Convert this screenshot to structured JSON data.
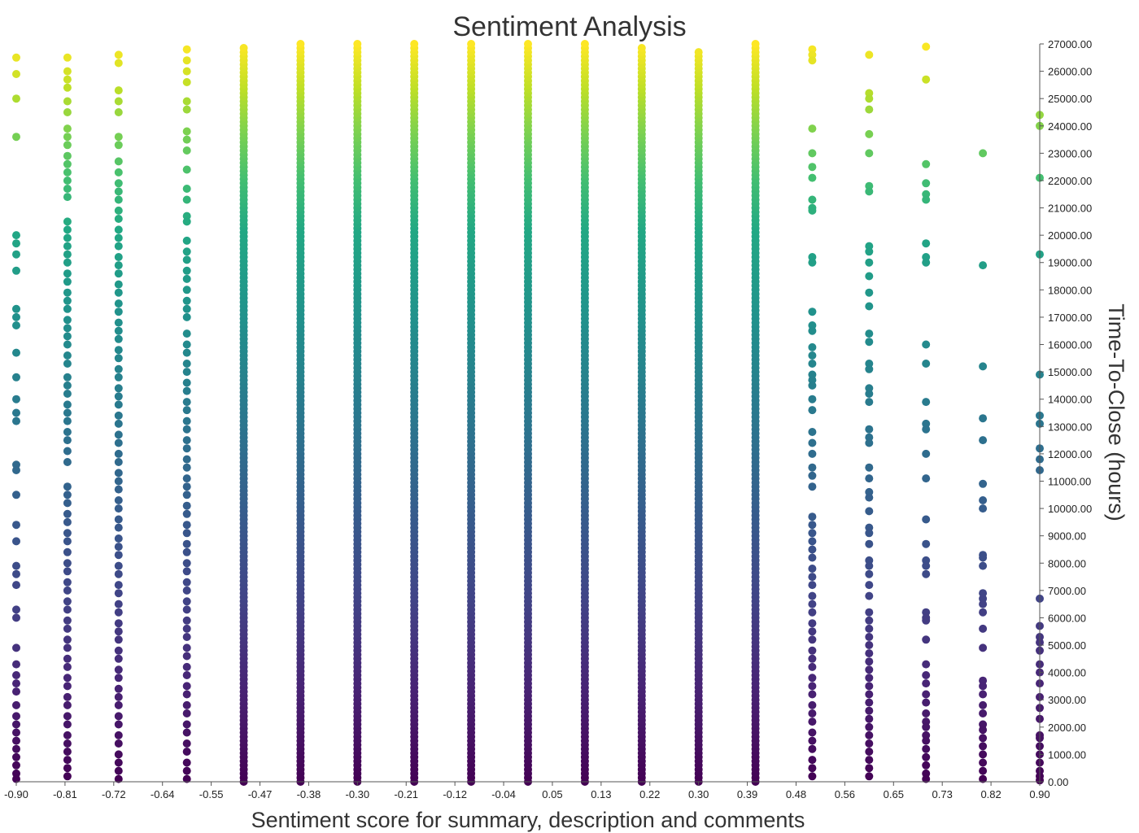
{
  "chart_data": {
    "type": "scatter",
    "title": "Sentiment Analysis",
    "xlabel": "Sentiment score for summary, description and comments",
    "ylabel": "Time-To-Close (hours)",
    "xlim": [
      -0.9,
      0.9
    ],
    "ylim": [
      0,
      27000
    ],
    "x_ticks": [
      "-0.90",
      "-0.81",
      "-0.72",
      "-0.64",
      "-0.55",
      "-0.47",
      "-0.38",
      "-0.30",
      "-0.21",
      "-0.12",
      "-0.04",
      "0.05",
      "0.13",
      "0.22",
      "0.30",
      "0.39",
      "0.48",
      "0.56",
      "0.65",
      "0.73",
      "0.82",
      "0.90"
    ],
    "y_ticks": [
      "27000.00",
      "26000.00",
      "25000.00",
      "24000.00",
      "23000.00",
      "22000.00",
      "21000.00",
      "20000.00",
      "19000.00",
      "18000.00",
      "17000.00",
      "16000.00",
      "15000.00",
      "14000.00",
      "13000.00",
      "12000.00",
      "11000.00",
      "10000.00",
      "9000.00",
      "8000.00",
      "7000.00",
      "6000.00",
      "5000.00",
      "4000.00",
      "3000.00",
      "2000.00",
      "1000.00",
      "0.00"
    ],
    "y_axis_position": "right",
    "grid": false,
    "colormap": "viridis (by Time-To-Close)",
    "colors": {
      "low": "#440154",
      "high": "#fde725"
    },
    "series": [
      {
        "x": -0.9,
        "y": [
          26500,
          25900,
          25000,
          23600,
          20000,
          19700,
          19300,
          18700,
          17300,
          17000,
          16700,
          15700,
          14800,
          14000,
          13500,
          13200,
          11600,
          11400,
          10500,
          9400,
          8800,
          7900,
          7600,
          7200,
          6300,
          6000,
          4900,
          4300,
          3900,
          3600,
          3300,
          2800,
          2400,
          2100,
          1800,
          1500,
          1200,
          900,
          600,
          300,
          100
        ]
      },
      {
        "x": -0.81,
        "y": [
          26500,
          26000,
          25700,
          25400,
          24900,
          24500,
          23900,
          23600,
          23300,
          22900,
          22600,
          22300,
          22000,
          21700,
          21400,
          20500,
          20200,
          19900,
          19600,
          19300,
          19000,
          18600,
          18300,
          17900,
          17600,
          17300,
          16900,
          16600,
          16300,
          16000,
          15600,
          15300,
          14800,
          14500,
          14200,
          13800,
          13500,
          13200,
          12800,
          12500,
          12100,
          11700,
          10800,
          10500,
          10200,
          9800,
          9500,
          9100,
          8800,
          8400,
          8000,
          7700,
          7300,
          7000,
          6600,
          6300,
          5900,
          5600,
          5200,
          4900,
          4500,
          4200,
          3800,
          3500,
          3100,
          2800,
          2400,
          2100,
          1700,
          1400,
          1100,
          800,
          500,
          200
        ]
      },
      {
        "x": -0.72,
        "y": [
          26600,
          26300,
          25300,
          24900,
          24500,
          23600,
          23300,
          22700,
          22300,
          21900,
          21600,
          21300,
          20900,
          20600,
          20200,
          19900,
          19600,
          19200,
          18900,
          18600,
          18200,
          17900,
          17500,
          17200,
          16800,
          16500,
          16200,
          15800,
          15500,
          15100,
          14800,
          14400,
          14100,
          13800,
          13400,
          13100,
          12700,
          12400,
          12000,
          11700,
          11300,
          11000,
          10700,
          10300,
          10000,
          9600,
          9300,
          8900,
          8600,
          8300,
          7900,
          7600,
          7200,
          6900,
          6500,
          6200,
          5800,
          5500,
          5200,
          4800,
          4500,
          4100,
          3800,
          3400,
          3100,
          2800,
          2400,
          2100,
          1700,
          1400,
          1000,
          700,
          400,
          100
        ]
      },
      {
        "x": -0.6,
        "y": [
          26800,
          26400,
          26000,
          25600,
          24900,
          24600,
          23800,
          23500,
          23100,
          22400,
          21700,
          21300,
          20700,
          20500,
          19800,
          19400,
          19100,
          18700,
          18400,
          18000,
          17600,
          17300,
          17000,
          16400,
          16000,
          15700,
          15300,
          15000,
          14600,
          14300,
          13900,
          13600,
          13200,
          12900,
          12500,
          12200,
          11800,
          11500,
          11100,
          10800,
          10500,
          10100,
          9800,
          9400,
          9100,
          8700,
          8400,
          8000,
          7700,
          7300,
          7000,
          6600,
          6300,
          5900,
          5600,
          5300,
          4900,
          4600,
          4200,
          3900,
          3500,
          3200,
          2800,
          2500,
          2100,
          1800,
          1400,
          1100,
          700,
          400,
          100
        ]
      },
      {
        "x": -0.5,
        "dense_from": 0,
        "dense_to": 26900
      },
      {
        "x": -0.4,
        "dense_from": 0,
        "dense_to": 27000
      },
      {
        "x": -0.3,
        "dense_from": 0,
        "dense_to": 27000
      },
      {
        "x": -0.2,
        "dense_from": 0,
        "dense_to": 27000
      },
      {
        "x": -0.1,
        "dense_from": 0,
        "dense_to": 27000
      },
      {
        "x": 0.0,
        "dense_from": 0,
        "dense_to": 27000
      },
      {
        "x": 0.1,
        "dense_from": 0,
        "dense_to": 27000
      },
      {
        "x": 0.2,
        "dense_from": 0,
        "dense_to": 26900
      },
      {
        "x": 0.3,
        "dense_from": 0,
        "dense_to": 26800
      },
      {
        "x": 0.4,
        "dense_from": 0,
        "dense_to": 27000
      },
      {
        "x": 0.5,
        "y": [
          26800,
          26600,
          26400,
          23900,
          23000,
          22500,
          22100,
          21300,
          21000,
          20900,
          19200,
          19000,
          17200,
          16700,
          16500,
          15900,
          15600,
          15300,
          14900,
          14700,
          14500,
          14000,
          13600,
          12800,
          12400,
          12000,
          11500,
          11200,
          10800,
          9700,
          9400,
          9100,
          8800,
          8500,
          8200,
          7800,
          7500,
          7200,
          6800,
          6500,
          6200,
          5800,
          5500,
          5200,
          4800,
          4500,
          4200,
          3800,
          3500,
          3200,
          2800,
          2500,
          2200,
          1800,
          1500,
          1200,
          800,
          500,
          200
        ]
      },
      {
        "x": 0.6,
        "y": [
          26600,
          25200,
          25000,
          24600,
          23700,
          23000,
          21800,
          21600,
          19600,
          19400,
          19000,
          18500,
          17900,
          17400,
          16400,
          16100,
          15300,
          15100,
          14400,
          14200,
          13900,
          12900,
          12600,
          12400,
          11500,
          11100,
          10600,
          10400,
          9900,
          9300,
          9100,
          8700,
          8100,
          7900,
          7600,
          7200,
          6800,
          6200,
          5900,
          5600,
          5300,
          5000,
          4700,
          4400,
          4100,
          3800,
          3500,
          3200,
          2900,
          2600,
          2300,
          2000,
          1700,
          1400,
          1100,
          800,
          500,
          200
        ]
      },
      {
        "x": 0.7,
        "y": [
          26900,
          25700,
          22600,
          21900,
          21500,
          21300,
          19700,
          19200,
          19000,
          16000,
          15300,
          13900,
          13100,
          12900,
          12000,
          11100,
          9600,
          8700,
          8100,
          7900,
          7600,
          6200,
          6000,
          5900,
          5200,
          4300,
          3900,
          3600,
          3200,
          2900,
          2500,
          2200,
          2000,
          1700,
          1500,
          1200,
          900,
          600,
          300,
          100
        ]
      },
      {
        "x": 0.8,
        "y": [
          23000,
          18900,
          15200,
          13300,
          12500,
          10900,
          10300,
          10000,
          8300,
          8200,
          7900,
          6900,
          6700,
          6500,
          6200,
          5600,
          4900,
          3700,
          3500,
          3200,
          2800,
          2500,
          2100,
          1900,
          1600,
          1300,
          1000,
          700,
          400,
          100
        ]
      },
      {
        "x": 0.9,
        "y": [
          24400,
          24000,
          22100,
          19300,
          14900,
          13400,
          13100,
          12200,
          11800,
          11400,
          6700,
          5700,
          5300,
          5100,
          4800,
          4300,
          4000,
          3600,
          3100,
          2700,
          2300,
          1700,
          1600,
          1300,
          1000,
          700,
          400,
          200,
          50
        ]
      }
    ]
  }
}
